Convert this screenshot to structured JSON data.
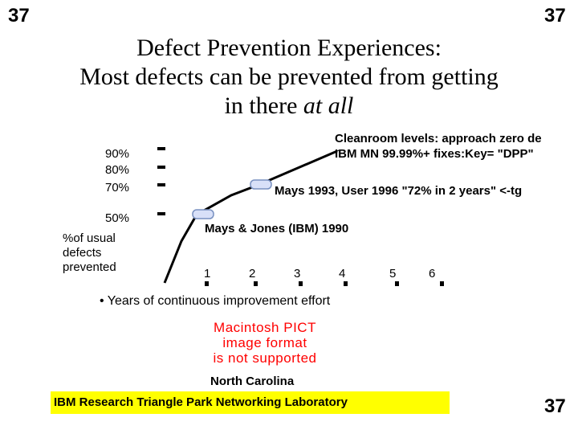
{
  "slide_number": {
    "top_left": "37",
    "top_right": "37",
    "bottom_right": "37"
  },
  "title": {
    "line1": "Defect Prevention Experiences:",
    "line2": "Most defects can be prevented from getting",
    "line3_prefix": "in there ",
    "line3_italic": "at all"
  },
  "y_axis": {
    "ticks": [
      "90%",
      "80%",
      "70%",
      "50%"
    ],
    "label_lines": [
      "%of usual",
      "defects",
      "prevented"
    ]
  },
  "x_axis": {
    "ticks": [
      "1",
      "2",
      "3",
      "4",
      "5",
      "6"
    ],
    "caption": "• Years of continuous improvement effort"
  },
  "annotations": {
    "cleanroom_1": "Cleanroom levels: approach zero de",
    "cleanroom_2": "IBM MN 99.99%+ fixes:Key= \"DPP\"",
    "mays_1993": "Mays 1993, User 1996 \"72% in 2 years\" <-tg",
    "mays_jones": "Mays & Jones (IBM) 1990"
  },
  "image_placeholder": {
    "line1": "Macintosh PICT",
    "line2": "image format",
    "line3": "is not supported"
  },
  "footer": {
    "north_carolina": "North Carolina",
    "banner": "IBM Research Triangle Park Networking Laboratory"
  },
  "colors": {
    "banner": "#ffff00",
    "pict_text": "#ff0000",
    "marker": "#d8e0f8"
  }
}
